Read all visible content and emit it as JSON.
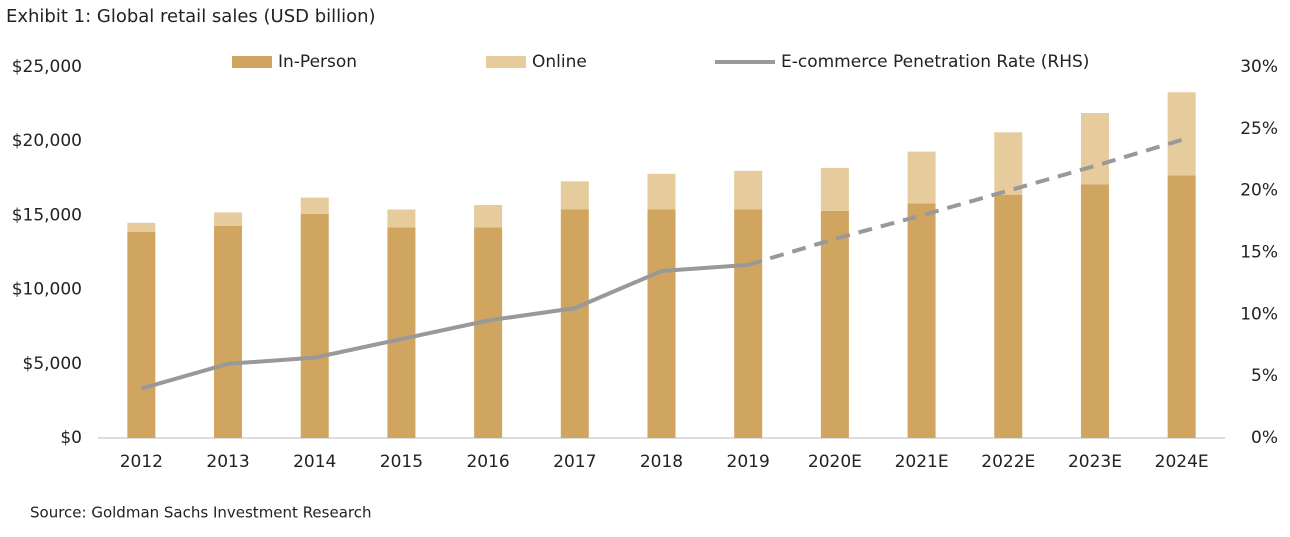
{
  "chart_data": {
    "type": "bar_line",
    "title": "Exhibit 1: Global retail sales (USD billion)",
    "source": "Source: Goldman Sachs Investment Research",
    "categories": [
      "2012",
      "2013",
      "2014",
      "2015",
      "2016",
      "2017",
      "2018",
      "2019",
      "2020E",
      "2021E",
      "2022E",
      "2023E",
      "2024E"
    ],
    "series": [
      {
        "name": "In-Person",
        "type": "bar",
        "color": "#cfa55f",
        "values": [
          13900,
          14300,
          15100,
          14200,
          14200,
          15400,
          15400,
          15400,
          15300,
          15800,
          16400,
          17100,
          17700
        ]
      },
      {
        "name": "Online",
        "type": "bar",
        "color": "#e6cc9c",
        "values": [
          600,
          900,
          1100,
          1200,
          1500,
          1900,
          2400,
          2600,
          2900,
          3500,
          4200,
          4800,
          5600
        ]
      },
      {
        "name": "E-commerce Penetration Rate (RHS)",
        "type": "line",
        "axis": "y2",
        "color": "#999999",
        "dash_from": "2019",
        "values": [
          4.0,
          6.0,
          6.5,
          8.0,
          9.5,
          10.5,
          13.5,
          14.0,
          16.1,
          18.0,
          20.0,
          22.0,
          24.1
        ]
      }
    ],
    "ylim": [
      0,
      25000
    ],
    "yticks": [
      {
        "value": 0,
        "label": "$0"
      },
      {
        "value": 5000,
        "label": "$5,000"
      },
      {
        "value": 10000,
        "label": "$10,000"
      },
      {
        "value": 15000,
        "label": "$15,000"
      },
      {
        "value": 20000,
        "label": "$20,000"
      },
      {
        "value": 25000,
        "label": "$25,000"
      }
    ],
    "y2lim": [
      0,
      30
    ],
    "y2ticks": [
      {
        "value": 0,
        "label": "0%"
      },
      {
        "value": 5,
        "label": "5%"
      },
      {
        "value": 10,
        "label": "10%"
      },
      {
        "value": 15,
        "label": "15%"
      },
      {
        "value": 20,
        "label": "20%"
      },
      {
        "value": 25,
        "label": "25%"
      },
      {
        "value": 30,
        "label": "30%"
      }
    ],
    "grid": false
  }
}
